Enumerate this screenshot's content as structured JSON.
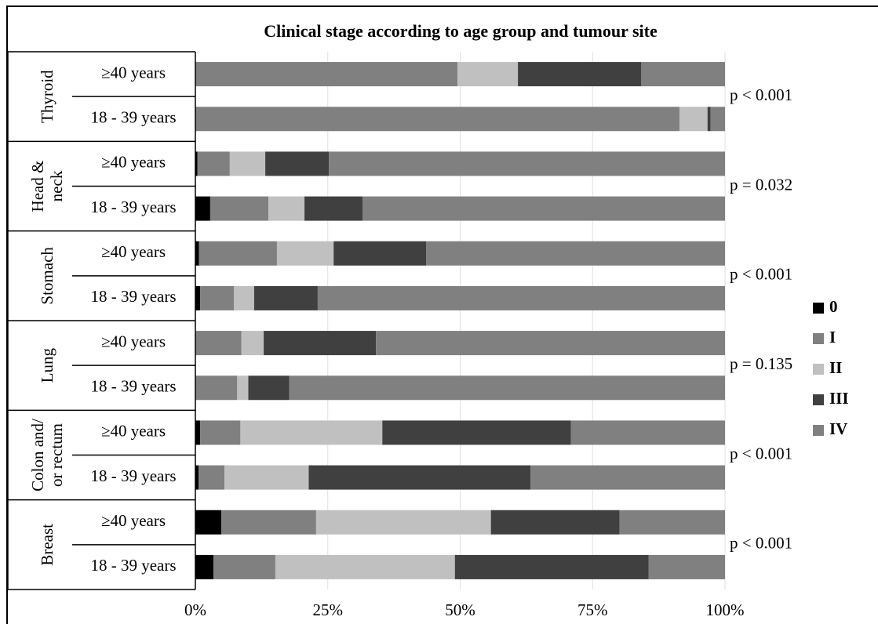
{
  "chart_data": {
    "type": "bar",
    "orientation": "horizontal",
    "stacked": true,
    "title": "Clinical stage according to age group and tumour site",
    "categories": [
      "≥40 years",
      "18 - 39 years",
      "≥40 years",
      "18 - 39 years",
      "≥40 years",
      "18 - 39 years",
      "≥40 years",
      "18 - 39 years",
      "≥40 years",
      "18 - 39 years",
      "≥40 years",
      "18 - 39 years"
    ],
    "groups": [
      {
        "label": [
          "Thyroid"
        ],
        "annotation": "p < 0.001"
      },
      {
        "label": [
          "Head &",
          "neck"
        ],
        "annotation": "p = 0.032"
      },
      {
        "label": [
          "Stomach"
        ],
        "annotation": "p < 0.001"
      },
      {
        "label": [
          "Lung"
        ],
        "annotation": "p = 0.135"
      },
      {
        "label": [
          "Colon and/",
          "or rectum"
        ],
        "annotation": "p < 0.001"
      },
      {
        "label": [
          "Breast"
        ],
        "annotation": "p < 0.001"
      }
    ],
    "series": [
      {
        "name": "0",
        "color": "#000000",
        "values": [
          0,
          0,
          0.4,
          2.8,
          0.7,
          0.9,
          0,
          0,
          0.9,
          0.6,
          4.9,
          3.4
        ]
      },
      {
        "name": "I",
        "color": "#808080",
        "values": [
          49.5,
          91.4,
          6.1,
          11.0,
          14.7,
          6.4,
          8.7,
          7.9,
          7.6,
          4.9,
          17.9,
          11.7
        ]
      },
      {
        "name": "II",
        "color": "#c0c0c0",
        "values": [
          11.4,
          5.3,
          6.7,
          6.8,
          10.7,
          3.8,
          4.2,
          2.1,
          26.8,
          15.9,
          33.0,
          33.9
        ]
      },
      {
        "name": "III",
        "color": "#404040",
        "values": [
          23.3,
          0.6,
          12.0,
          11.0,
          17.5,
          12.0,
          21.2,
          7.7,
          35.6,
          41.9,
          24.3,
          36.6
        ]
      },
      {
        "name": "IV",
        "color": "#808080",
        "values": [
          15.8,
          2.7,
          74.8,
          68.4,
          56.4,
          76.9,
          65.9,
          82.3,
          29.1,
          36.7,
          19.9,
          14.4
        ]
      }
    ],
    "xlim": [
      0,
      100
    ],
    "xticks": [
      {
        "value": 0,
        "label": "0%"
      },
      {
        "value": 25,
        "label": "25%"
      },
      {
        "value": 50,
        "label": "50%"
      },
      {
        "value": 75,
        "label": "75%"
      },
      {
        "value": 100,
        "label": "100%"
      }
    ],
    "grid": true,
    "legend": "right"
  }
}
